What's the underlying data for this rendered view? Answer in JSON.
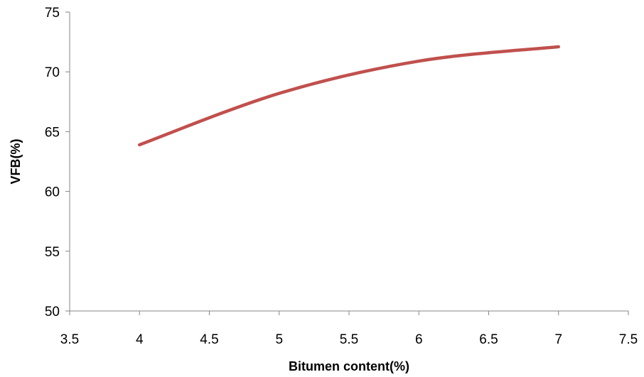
{
  "chart_data": {
    "type": "line",
    "title": "",
    "xlabel": "Bitumen content(%)",
    "ylabel": "VFB(%)",
    "xlim": [
      3.5,
      7.5
    ],
    "ylim": [
      50,
      75
    ],
    "x_ticks": [
      "3.5",
      "4",
      "4.5",
      "5",
      "5.5",
      "6",
      "6.5",
      "7",
      "7.5"
    ],
    "y_ticks": [
      "50",
      "55",
      "60",
      "65",
      "70",
      "75"
    ],
    "grid": false,
    "legend": "none",
    "series": [
      {
        "color": "#c0504d",
        "smooth": true,
        "x": [
          4,
          5,
          6,
          7
        ],
        "y": [
          63.9,
          68.2,
          70.9,
          72.1
        ]
      }
    ]
  }
}
